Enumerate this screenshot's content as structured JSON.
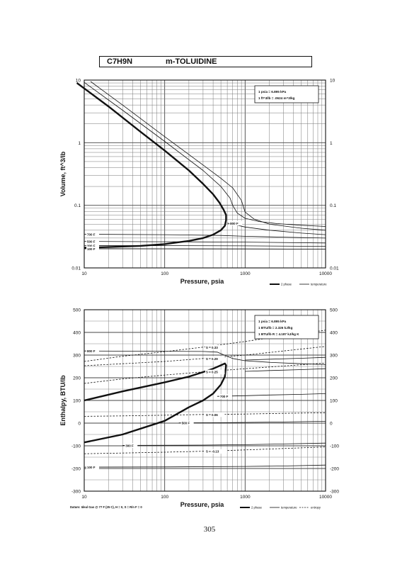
{
  "header": {
    "formula": "C7H9N",
    "name": "m-TOLUIDINE"
  },
  "page_number": "305",
  "chart_data": [
    {
      "type": "line",
      "ylabel": "Volume, ft^3/lb",
      "xlabel": "Pressure,  psia",
      "xscale": "log",
      "yscale": "log",
      "xlim": [
        10,
        10000
      ],
      "ylim": [
        0.01,
        10
      ],
      "x_ticks": [
        "10",
        "100",
        "1000",
        "10000"
      ],
      "y_ticks": [
        "0.01",
        "0.1",
        "1",
        "10"
      ],
      "y_ticks_right": [
        "0.01",
        "0.1",
        "1",
        "10"
      ],
      "grid": true,
      "notes": [
        "1 psia = 6.895 kPa",
        "1 ft^3/lb = .0624 m^3/kg"
      ],
      "legend": [
        "2 phase",
        "temperature"
      ],
      "series": [
        {
          "name": "2 phase",
          "style": "bold",
          "x": [
            8.1,
            20,
            50,
            100,
            200,
            300,
            400,
            480,
            540,
            580,
            580,
            560,
            500,
            400,
            300,
            200,
            100,
            50,
            20,
            10
          ],
          "y": [
            9,
            3.8,
            1.5,
            0.75,
            0.36,
            0.22,
            0.15,
            0.11,
            0.085,
            0.07,
            0.058,
            0.047,
            0.04,
            0.034,
            0.03,
            0.027,
            0.024,
            0.0225,
            0.0215,
            0.021
          ]
        },
        {
          "label": "",
          "style": "thin",
          "x": [
            10,
            30,
            100,
            300,
            500,
            650,
            700,
            800,
            1000,
            1500,
            2500,
            5000,
            10000
          ],
          "y": [
            9.2,
            3.3,
            1.05,
            0.36,
            0.2,
            0.13,
            0.1,
            0.075,
            0.062,
            0.055,
            0.051,
            0.048,
            0.046
          ]
        },
        {
          "label": "",
          "style": "thin",
          "x": [
            12,
            30,
            100,
            300,
            500,
            700,
            900,
            1000,
            1300,
            2000,
            5000,
            10000
          ],
          "y": [
            9.5,
            4,
            1.25,
            0.44,
            0.27,
            0.19,
            0.12,
            0.078,
            0.06,
            0.05,
            0.043,
            0.04
          ]
        },
        {
          "label": "800 F",
          "style": "thin",
          "x": [
            600,
            800,
            1000,
            2000,
            5000,
            10000
          ],
          "y": [
            0.052,
            0.048,
            0.045,
            0.04,
            0.036,
            0.034
          ]
        },
        {
          "label": "700 F",
          "style": "thin",
          "x": [
            10,
            100,
            500,
            1000,
            3000,
            10000
          ],
          "y": [
            0.0345,
            0.034,
            0.033,
            0.032,
            0.031,
            0.03
          ]
        },
        {
          "label": "500 F",
          "style": "thin",
          "x": [
            10,
            100,
            1000,
            10000
          ],
          "y": [
            0.0265,
            0.0262,
            0.0258,
            0.025
          ]
        },
        {
          "label": "300 F",
          "style": "thin",
          "x": [
            10,
            100,
            1000,
            10000
          ],
          "y": [
            0.0228,
            0.0227,
            0.0225,
            0.0221
          ]
        },
        {
          "label": "100 F",
          "style": "thin",
          "x": [
            10,
            100,
            1000,
            10000
          ],
          "y": [
            0.0203,
            0.0202,
            0.0201,
            0.0199
          ]
        }
      ]
    },
    {
      "type": "line",
      "ylabel": "Enthalpy, BTU/lb",
      "xlabel": "Pressure,  psia",
      "xscale": "log",
      "yscale": "linear",
      "xlim": [
        10,
        10000
      ],
      "ylim": [
        -300,
        500
      ],
      "x_ticks": [
        "10",
        "100",
        "1000",
        "10000"
      ],
      "y_ticks": [
        "-300",
        "-200",
        "-100",
        "0",
        "100",
        "200",
        "300",
        "400",
        "500"
      ],
      "y_ticks_right": [
        "-300",
        "-200",
        "-100",
        "0",
        "100",
        "200",
        "300",
        "400",
        "500"
      ],
      "grid": true,
      "notes": [
        "1 psia = 6.895 kPa",
        "1 BTU/lb = 2.326 kJ/kg",
        "1 BTU/lb R = 4.187 kJ/kg K"
      ],
      "legend": [
        "2 phase",
        "temperature",
        "entropy"
      ],
      "footnote": "Datum: Ideal Gas @ 77 F (25 C),  H = 0,  S = R/n F = 0",
      "series": [
        {
          "name": "2 phase",
          "style": "bold",
          "x": [
            10,
            30,
            100,
            200,
            300,
            400,
            500,
            560,
            580,
            560,
            500,
            400,
            300,
            200,
            100,
            30,
            10
          ],
          "y": [
            100,
            140,
            180,
            205,
            225,
            240,
            255,
            263,
            255,
            205,
            170,
            130,
            100,
            70,
            10,
            -50,
            -85
          ]
        },
        {
          "label": "800 F",
          "style": "thin",
          "x": [
            10,
            100,
            300,
            450,
            550,
            700,
            1000,
            2000,
            5000,
            10000
          ],
          "y": [
            318,
            317,
            316,
            313,
            300,
            285,
            275,
            268,
            262,
            258
          ]
        },
        {
          "label": "",
          "style": "thin",
          "x": [
            1000,
            2000,
            5000,
            10000
          ],
          "y": [
            278,
            282,
            286,
            290
          ]
        },
        {
          "label": "",
          "style": "thin",
          "x": [
            1000,
            2000,
            5000,
            10000
          ],
          "y": [
            228,
            232,
            236,
            240
          ]
        },
        {
          "label": "700 F",
          "style": "thin",
          "x": [
            450,
            1000,
            2000,
            5000,
            10000
          ],
          "y": [
            118,
            121,
            124,
            127,
            130
          ]
        },
        {
          "label": "500 F",
          "style": "thin",
          "x": [
            150,
            500,
            1000,
            3000,
            10000
          ],
          "y": [
            1,
            2,
            3,
            5,
            8
          ]
        },
        {
          "label": "300 F",
          "style": "thin",
          "x": [
            30,
            300,
            1000,
            3000,
            10000
          ],
          "y": [
            -98,
            -97,
            -95,
            -92,
            -88
          ]
        },
        {
          "label": "100 F",
          "style": "thin",
          "x": [
            10,
            100,
            1000,
            3000,
            10000
          ],
          "y": [
            -194,
            -193,
            -191,
            -189,
            -185
          ]
        },
        {
          "label": "S = 0.33",
          "style": "dashed",
          "x": [
            10,
            30,
            100,
            300,
            1000,
            3000,
            10000
          ],
          "y": [
            272,
            295,
            315,
            335,
            360,
            385,
            410
          ]
        },
        {
          "label": "S = 0.29",
          "style": "dashed",
          "x": [
            10,
            30,
            100,
            300,
            1000,
            3000,
            10000
          ],
          "y": [
            253,
            262,
            272,
            285,
            300,
            318,
            338
          ]
        },
        {
          "label": "S = 0.25",
          "style": "dashed",
          "x": [
            10,
            30,
            100,
            300,
            1000,
            3000,
            10000
          ],
          "y": [
            175,
            195,
            212,
            226,
            240,
            252,
            265
          ]
        },
        {
          "label": "S = 0.06",
          "style": "dashed",
          "x": [
            10,
            30,
            100,
            300,
            1000,
            3000,
            10000
          ],
          "y": [
            30,
            32,
            35,
            38,
            40,
            43,
            46
          ]
        },
        {
          "label": "S = -0.13",
          "style": "dashed",
          "x": [
            10,
            30,
            100,
            300,
            1000,
            3000,
            10000
          ],
          "y": [
            -135,
            -132,
            -128,
            -124,
            -118,
            -112,
            -105
          ]
        }
      ]
    }
  ]
}
